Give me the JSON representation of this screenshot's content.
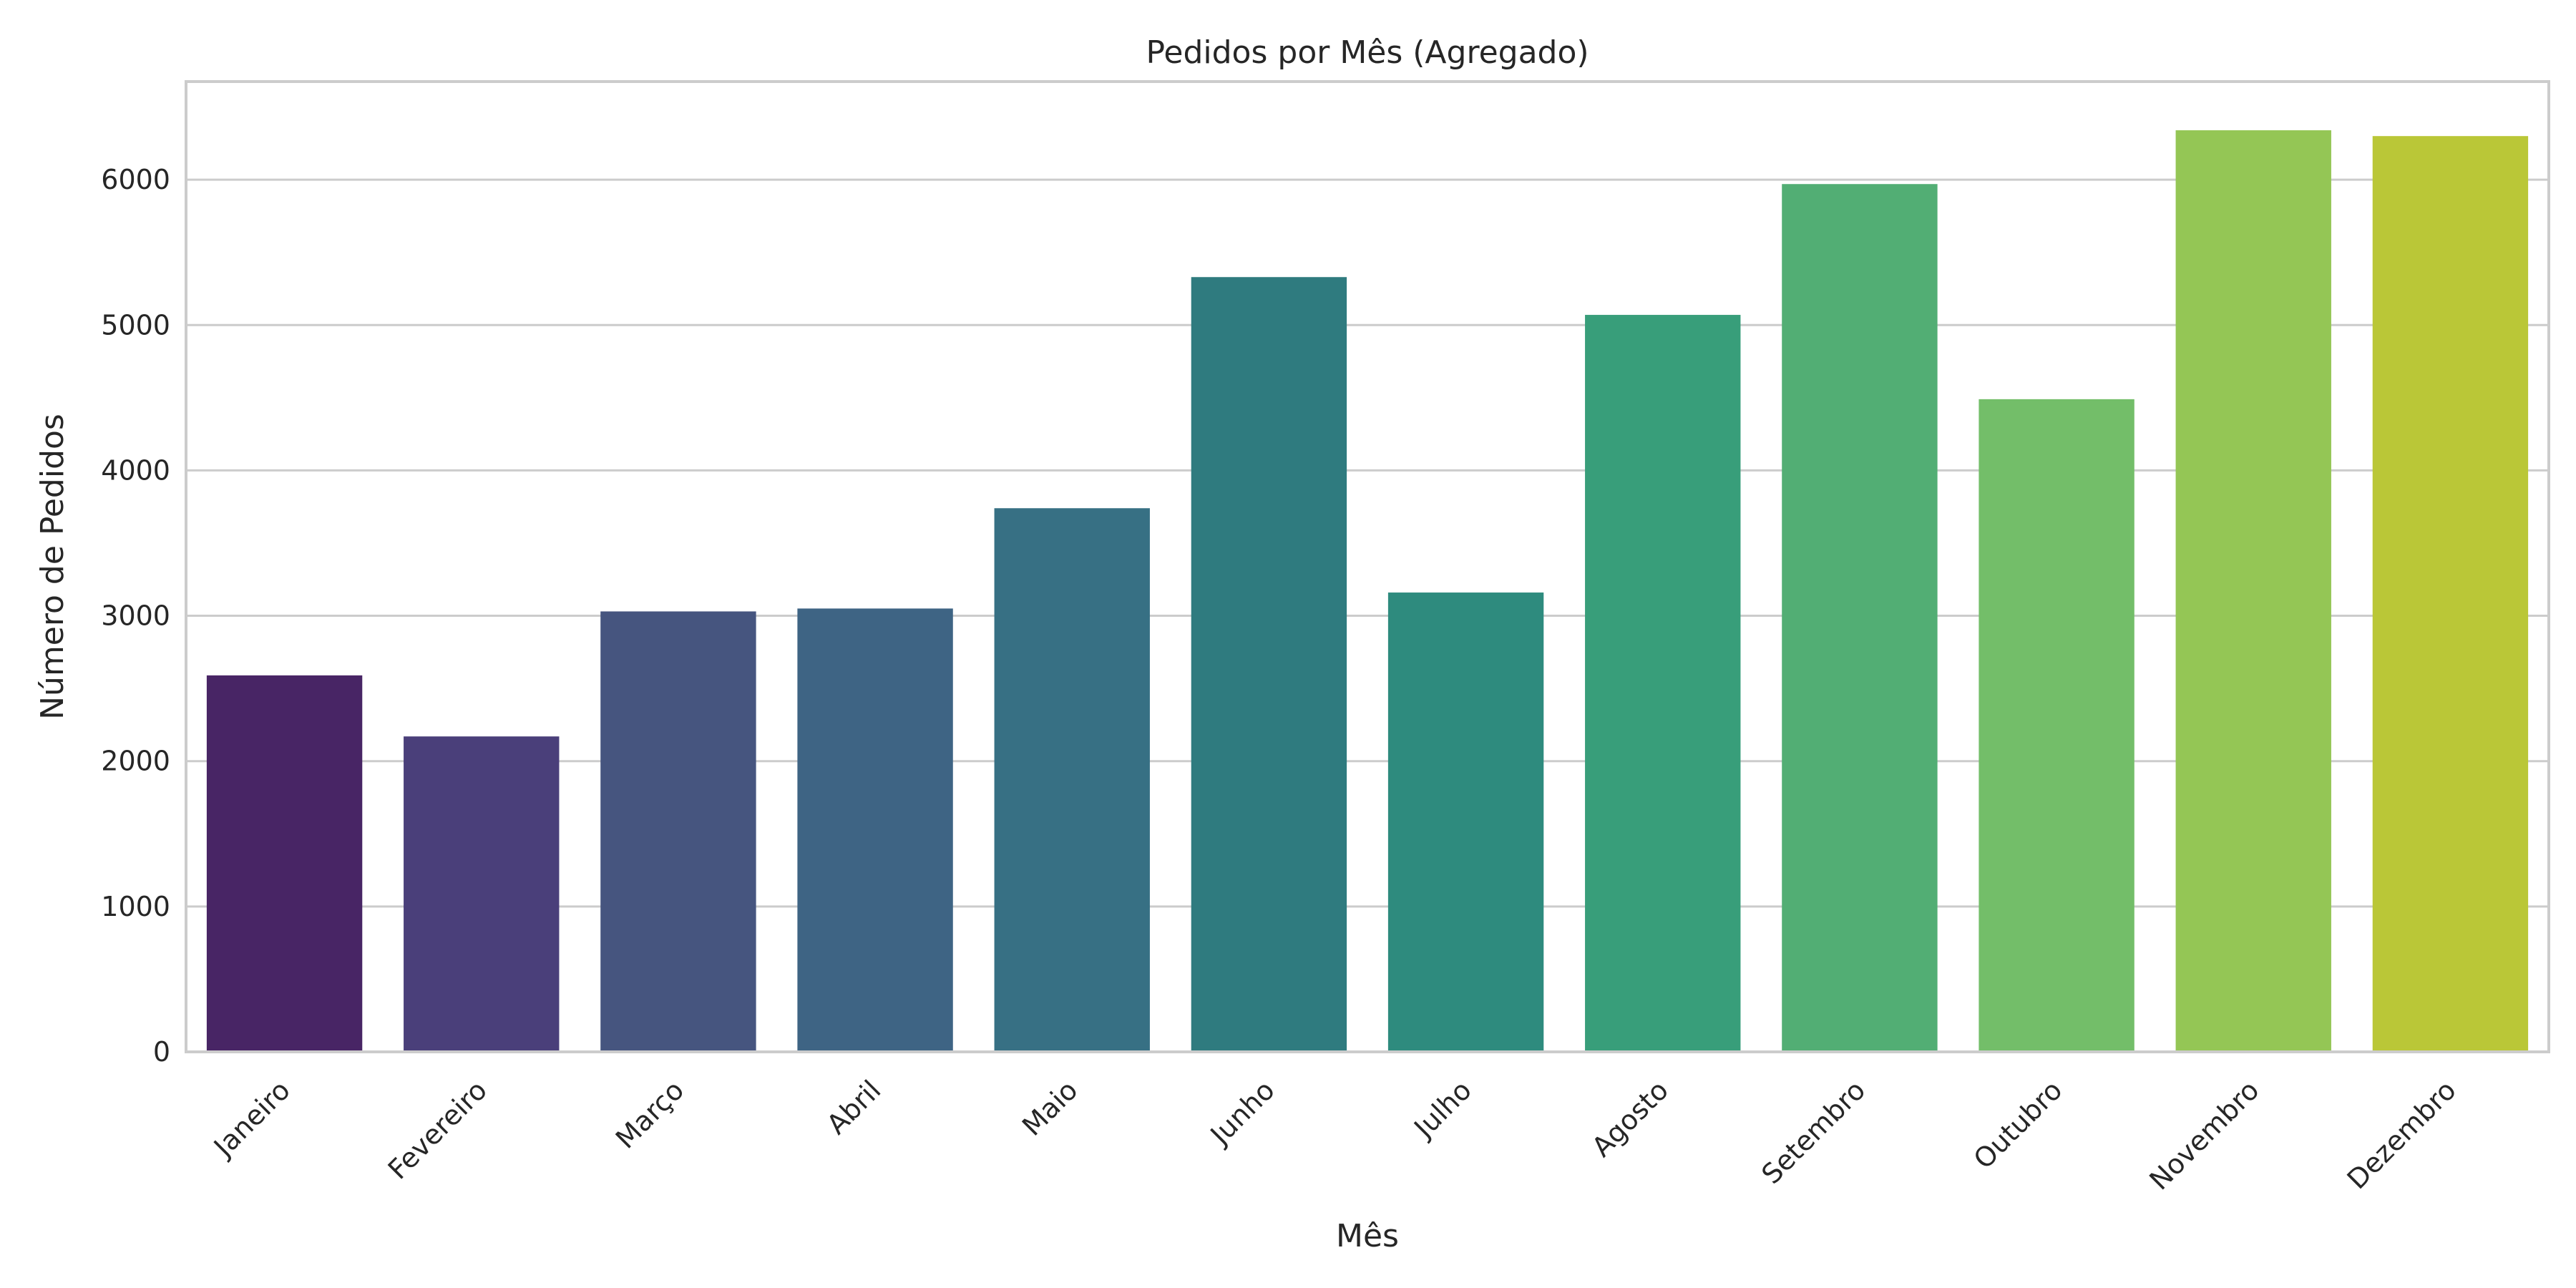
{
  "chart_data": {
    "type": "bar",
    "title": "Pedidos por Mês (Agregado)",
    "xlabel": "Mês",
    "ylabel": "Número de Pedidos",
    "categories": [
      "Janeiro",
      "Fevereiro",
      "Março",
      "Abril",
      "Maio",
      "Junho",
      "Julho",
      "Agosto",
      "Setembro",
      "Outubro",
      "Novembro",
      "Dezembro"
    ],
    "values": [
      2590,
      2170,
      3030,
      3050,
      3740,
      5330,
      3160,
      5070,
      5970,
      4490,
      6340,
      6300
    ],
    "ylim": [
      0,
      6675
    ],
    "yticks": [
      0,
      1000,
      2000,
      3000,
      4000,
      5000,
      6000
    ],
    "grid": "horizontal",
    "legend": "none",
    "colors": [
      "#482565",
      "#4a3f7a",
      "#46557f",
      "#3e6484",
      "#377084",
      "#2f7b7f",
      "#2e8b7e",
      "#389e7a",
      "#52ae74",
      "#73be69",
      "#94c655",
      "#bac737"
    ]
  }
}
